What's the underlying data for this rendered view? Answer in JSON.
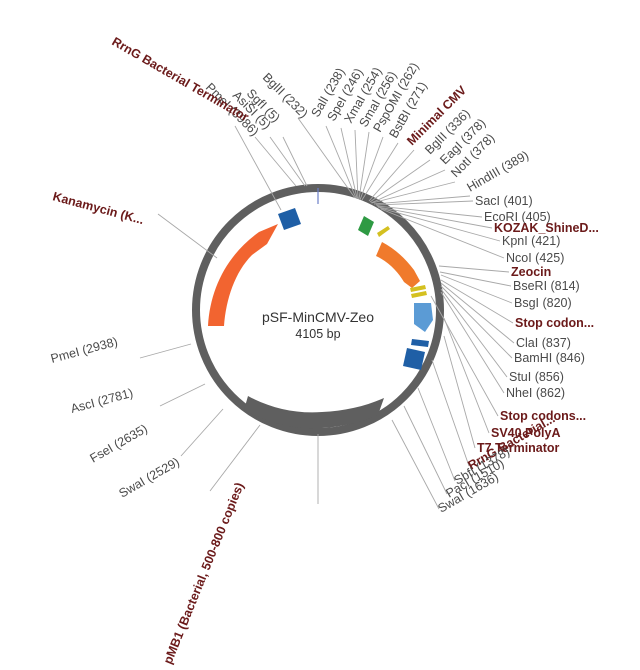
{
  "plasmid": {
    "name": "pSF-MinCMV-Zeo",
    "size": "4105 bp",
    "length_bp": 4105,
    "backbone_color": "#5f5f5f"
  },
  "sites": [
    {
      "id": "pmei-3986",
      "label": "PmeI (3986)"
    },
    {
      "id": "asisi-5",
      "label": "AsiSI (5)"
    },
    {
      "id": "sgfi-5",
      "label": "SgfI (5)"
    },
    {
      "id": "bglii-232",
      "label": "BglII (232)"
    },
    {
      "id": "sali-238",
      "label": "SalI (238)"
    },
    {
      "id": "spei-246",
      "label": "SpeI (246)"
    },
    {
      "id": "xmai-254",
      "label": "XmaI (254)"
    },
    {
      "id": "smai-256",
      "label": "SmaI (256)"
    },
    {
      "id": "psp0mi-262",
      "label": "PspOMI (262)"
    },
    {
      "id": "bstbi-271",
      "label": "BstBI (271)"
    },
    {
      "id": "bglii-336",
      "label": "BglII (336)"
    },
    {
      "id": "eagi-378",
      "label": "EagI (378)"
    },
    {
      "id": "noti-378",
      "label": "NotI (378)"
    },
    {
      "id": "hindiii-389",
      "label": "HindIII (389)"
    },
    {
      "id": "saci-401",
      "label": "SacI (401)"
    },
    {
      "id": "ecori-405",
      "label": "EcoRI (405)"
    },
    {
      "id": "kpni-421",
      "label": "KpnI (421)"
    },
    {
      "id": "ncoi-425",
      "label": "NcoI (425)"
    },
    {
      "id": "bseri-814",
      "label": "BseRI (814)"
    },
    {
      "id": "bsgi-820",
      "label": "BsgI (820)"
    },
    {
      "id": "clai-837",
      "label": "ClaI (837)"
    },
    {
      "id": "bamhi-846",
      "label": "BamHI (846)"
    },
    {
      "id": "stui-856",
      "label": "StuI (856)"
    },
    {
      "id": "nhei-862",
      "label": "NheI (862)"
    },
    {
      "id": "sbfi-1378",
      "label": "SbfI (1378)"
    },
    {
      "id": "paci-1510",
      "label": "PacI (1510)"
    },
    {
      "id": "swai-1636",
      "label": "SwaI (1636)"
    },
    {
      "id": "swai-2529",
      "label": "SwaI (2529)"
    },
    {
      "id": "fsei-2635",
      "label": "FseI (2635)"
    },
    {
      "id": "asci-2781",
      "label": "AscI (2781)"
    },
    {
      "id": "pmei-2938",
      "label": "PmeI (2938)"
    }
  ],
  "features": [
    {
      "id": "rrng-terminator-top",
      "label": "RrnG Bacterial Terminator"
    },
    {
      "id": "minimal-cmv",
      "label": "Minimal CMV"
    },
    {
      "id": "kozak",
      "label": "KOZAK_ShineD..."
    },
    {
      "id": "zeocin",
      "label": "Zeocin"
    },
    {
      "id": "stop-codon",
      "label": "Stop codon..."
    },
    {
      "id": "stop-codons",
      "label": "Stop codons..."
    },
    {
      "id": "sv40-polya",
      "label": "SV40 PolyA"
    },
    {
      "id": "t7-terminator",
      "label": "T7 Terminator"
    },
    {
      "id": "rrng-bacterial",
      "label": "RrnG Bacterial..."
    },
    {
      "id": "kanamycin",
      "label": "Kanamycin (K..."
    },
    {
      "id": "pmb1",
      "label": "pMB1 (Bacterial, 500-800 copies)"
    }
  ],
  "feature_colors": {
    "terminator": "#1f5fa6",
    "promoter": "#2e9a43",
    "kozak": "#d4c020",
    "zeocin": "#f07a2c",
    "stop": "#d4c020",
    "polya": "#5b9bd5",
    "kanamycin": "#f26430",
    "origin": "#5f5f5f"
  }
}
